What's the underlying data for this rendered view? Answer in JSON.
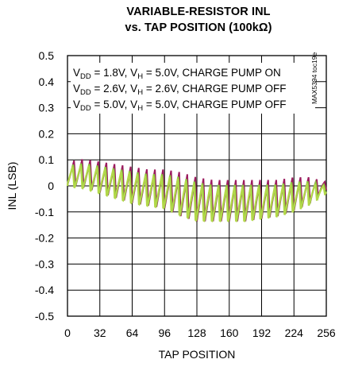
{
  "chart_data": {
    "type": "line",
    "title_line1": "VARIABLE-RESISTOR INL",
    "title_line2": "vs. TAP POSITION (100kΩ)",
    "xlabel": "TAP POSITION",
    "ylabel": "INL (LSB)",
    "xlim": [
      0,
      256
    ],
    "ylim": [
      -0.5,
      0.5
    ],
    "x_ticks": [
      "0",
      "32",
      "64",
      "96",
      "128",
      "160",
      "192",
      "224",
      "256"
    ],
    "y_ticks": [
      "0.5",
      "0.4",
      "0.3",
      "0.2",
      "0.1",
      "0",
      "-0.1",
      "-0.2",
      "-0.3",
      "-0.4",
      "-0.5"
    ],
    "grid": true,
    "part_code": "MAX5394 toc19e",
    "legend": [
      "V_DD = 1.8V, V_H = 5.0V, CHARGE PUMP ON",
      "V_DD = 2.6V, V_H = 2.6V, CHARGE PUMP OFF",
      "V_DD = 5.0V, V_H = 5.0V, CHARGE PUMP OFF"
    ],
    "colors": {
      "series_a": "#9b1b5e",
      "series_b": "#8dc63f",
      "series_c": "#b3d84a"
    },
    "series_envelope": {
      "x": [
        0,
        16,
        32,
        48,
        64,
        80,
        96,
        112,
        128,
        144,
        160,
        176,
        192,
        208,
        224,
        240,
        256
      ],
      "upper": [
        0.09,
        0.1,
        0.09,
        0.08,
        0.07,
        0.06,
        0.06,
        0.05,
        0.03,
        0.02,
        0.02,
        0.02,
        0.02,
        0.02,
        0.03,
        0.03,
        0.01
      ],
      "lower": [
        0.0,
        -0.01,
        -0.03,
        -0.05,
        -0.07,
        -0.08,
        -0.09,
        -0.12,
        -0.14,
        -0.14,
        -0.14,
        -0.14,
        -0.13,
        -0.12,
        -0.1,
        -0.07,
        -0.02
      ],
      "sawtooth_period_taps": 8
    }
  }
}
